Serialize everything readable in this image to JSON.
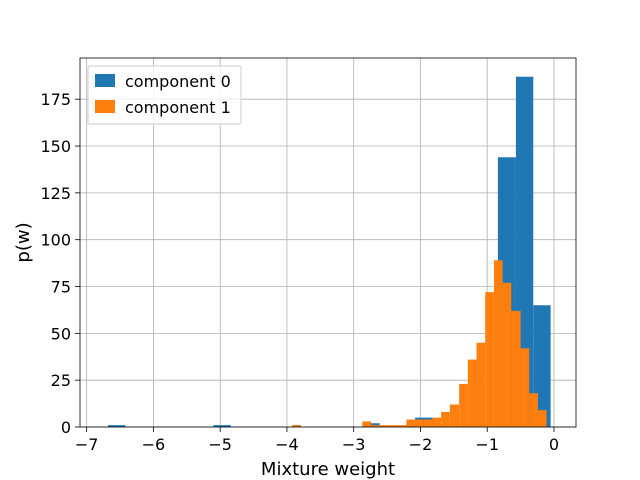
{
  "chart_data": {
    "type": "histogram",
    "title": "",
    "xlabel": "Mixture weight",
    "ylabel": "p(w)",
    "xlim": [
      -7.1,
      0.33
    ],
    "ylim": [
      0,
      197
    ],
    "xticks": [
      -7,
      -6,
      -5,
      -4,
      -3,
      -2,
      -1,
      0
    ],
    "yticks": [
      0,
      25,
      50,
      75,
      100,
      125,
      150,
      175
    ],
    "xtick_labels": [
      "−7",
      "−6",
      "−5",
      "−4",
      "−3",
      "−2",
      "−1",
      "0"
    ],
    "ytick_labels": [
      "0",
      "25",
      "50",
      "75",
      "100",
      "125",
      "150",
      "175"
    ],
    "grid": true,
    "legend_position": "upper-left",
    "series": [
      {
        "name": "component 0",
        "color": "#1f77b4",
        "bins": [
          {
            "x0": -6.68,
            "x1": -6.42,
            "count": 1
          },
          {
            "x0": -5.1,
            "x1": -4.84,
            "count": 1
          },
          {
            "x0": -3.92,
            "x1": -3.79,
            "count": 1
          },
          {
            "x0": -2.87,
            "x1": -2.74,
            "count": 2
          },
          {
            "x0": -2.74,
            "x1": -2.61,
            "count": 2
          },
          {
            "x0": -2.08,
            "x1": -1.82,
            "count": 5
          },
          {
            "x0": -0.84,
            "x1": -0.57,
            "count": 144
          },
          {
            "x0": -0.57,
            "x1": -0.31,
            "count": 187
          },
          {
            "x0": -0.31,
            "x1": -0.05,
            "count": 65
          }
        ]
      },
      {
        "name": "component 1",
        "color": "#ff7f0e",
        "bins": [
          {
            "x0": -3.92,
            "x1": -3.79,
            "count": 1
          },
          {
            "x0": -2.87,
            "x1": -2.74,
            "count": 3
          },
          {
            "x0": -2.74,
            "x1": -2.61,
            "count": 1
          },
          {
            "x0": -2.61,
            "x1": -2.48,
            "count": 1
          },
          {
            "x0": -2.48,
            "x1": -2.34,
            "count": 1
          },
          {
            "x0": -2.34,
            "x1": -2.21,
            "count": 1
          },
          {
            "x0": -2.21,
            "x1": -2.08,
            "count": 4
          },
          {
            "x0": -2.08,
            "x1": -1.95,
            "count": 4
          },
          {
            "x0": -1.95,
            "x1": -1.82,
            "count": 4
          },
          {
            "x0": -1.82,
            "x1": -1.69,
            "count": 5
          },
          {
            "x0": -1.69,
            "x1": -1.56,
            "count": 8
          },
          {
            "x0": -1.56,
            "x1": -1.42,
            "count": 12
          },
          {
            "x0": -1.42,
            "x1": -1.29,
            "count": 23
          },
          {
            "x0": -1.29,
            "x1": -1.16,
            "count": 36
          },
          {
            "x0": -1.16,
            "x1": -1.03,
            "count": 45
          },
          {
            "x0": -1.03,
            "x1": -0.9,
            "count": 72
          },
          {
            "x0": -0.9,
            "x1": -0.77,
            "count": 89
          },
          {
            "x0": -0.77,
            "x1": -0.64,
            "count": 77
          },
          {
            "x0": -0.64,
            "x1": -0.5,
            "count": 62
          },
          {
            "x0": -0.5,
            "x1": -0.37,
            "count": 42
          },
          {
            "x0": -0.37,
            "x1": -0.24,
            "count": 18
          },
          {
            "x0": -0.24,
            "x1": -0.11,
            "count": 9
          }
        ]
      }
    ]
  }
}
